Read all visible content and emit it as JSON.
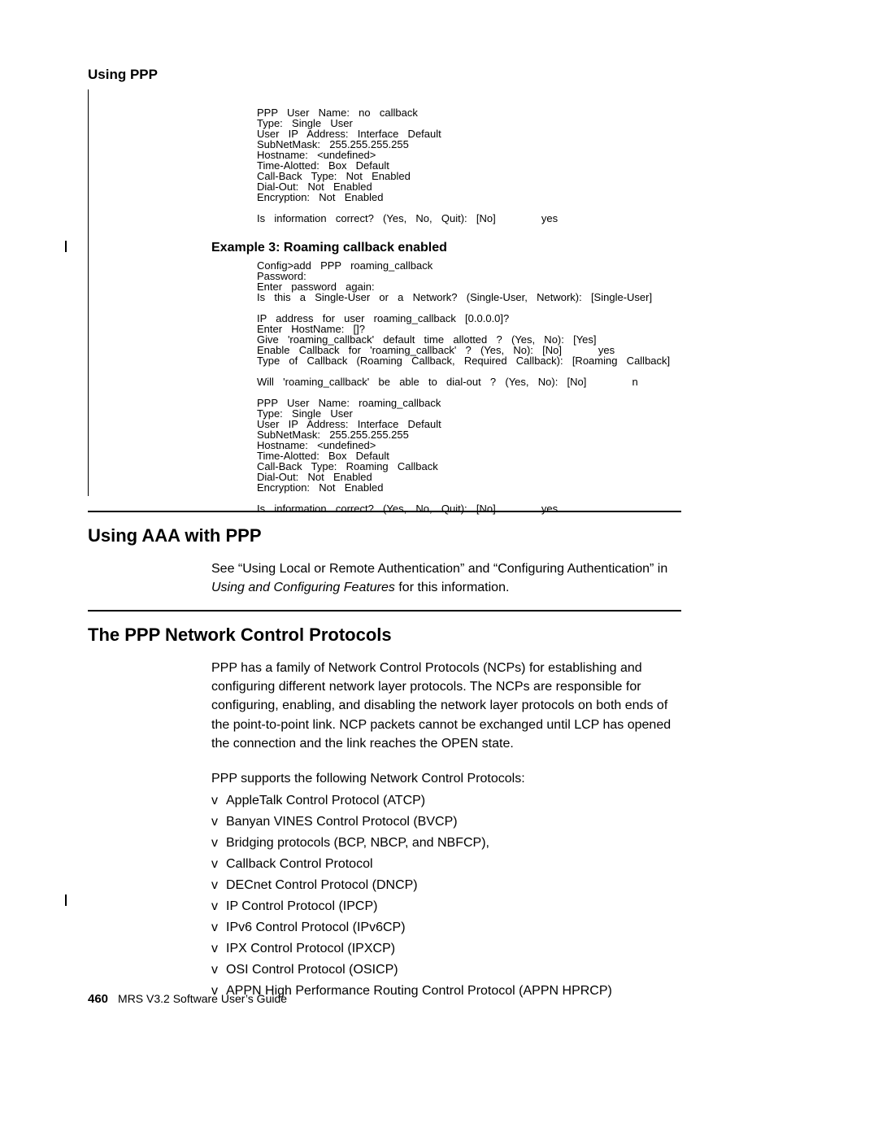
{
  "running_head": "Using PPP",
  "code1": "PPP  User  Name:  no  callback\nType:  Single  User\nUser  IP  Address:  Interface  Default\nSubNetMask:  255.255.255.255\nHostname:  <undefined>\nTime-Alotted:  Box  Default\nCall-Back  Type:  Not  Enabled\nDial-Out:  Not  Enabled\nEncryption:  Not  Enabled\n\nIs  information  correct?  (Yes,  No,  Quit):  [No]          yes",
  "subhead1": "Example 3: Roaming callback enabled",
  "code2": "Config>add  PPP  roaming_callback\nPassword:\nEnter  password  again:\nIs  this  a  Single-User  or  a  Network?  (Single-User,  Network):  [Single-User]\n\nIP  address  for  user  roaming_callback  [0.0.0.0]?\nEnter  HostName:  []?\nGive  'roaming_callback'  default  time  allotted  ?  (Yes,  No):  [Yes]\nEnable  Callback  for  'roaming_callback'  ?  (Yes,  No):  [No]        yes\nType  of  Callback  (Roaming  Callback,  Required  Callback):  [Roaming  Callback]\n\nWill  'roaming_callback'  be  able  to  dial-out  ?  (Yes,  No):  [No]          n\n\nPPP  User  Name:  roaming_callback\nType:  Single  User\nUser  IP  Address:  Interface  Default\nSubNetMask:  255.255.255.255\nHostname:  <undefined>\nTime-Alotted:  Box  Default\nCall-Back  Type:  Roaming  Callback\nDial-Out:  Not  Enabled\nEncryption:  Not  Enabled\n\nIs  information  correct?  (Yes,  No,  Quit):  [No]          yes",
  "h1a": "Using AAA with PPP",
  "para_a_1": "See “Using Local or Remote Authentication” and “Configuring Authentication” in ",
  "para_a_italic": "Using and Configuring Features",
  "para_a_2": " for this information.",
  "h1b": "The PPP Network Control Protocols",
  "para_b": "PPP has a family of Network Control Protocols (NCPs) for establishing and configuring different network layer protocols. The NCPs are responsible for configuring, enabling, and disabling the network layer protocols on both ends of the point-to-point link. NCP packets cannot be exchanged until LCP has opened the connection and the link reaches the OPEN state.",
  "para_c": "PPP supports the following Network Control Protocols:",
  "bullet_char": "v",
  "list_items": [
    "AppleTalk Control Protocol (ATCP)",
    "Banyan VINES Control Protocol (BVCP)",
    "Bridging protocols (BCP, NBCP, and NBFCP),",
    "Callback Control Protocol",
    "DECnet Control Protocol (DNCP)",
    "IP Control Protocol (IPCP)",
    "IPv6 Control Protocol (IPv6CP)",
    "IPX Control Protocol (IPXCP)",
    "OSI Control Protocol (OSICP)",
    "APPN High Performance Routing Control Protocol (APPN HPRCP)"
  ],
  "footer_page": "460",
  "footer_text": "MRS V3.2 Software User’s Guide"
}
